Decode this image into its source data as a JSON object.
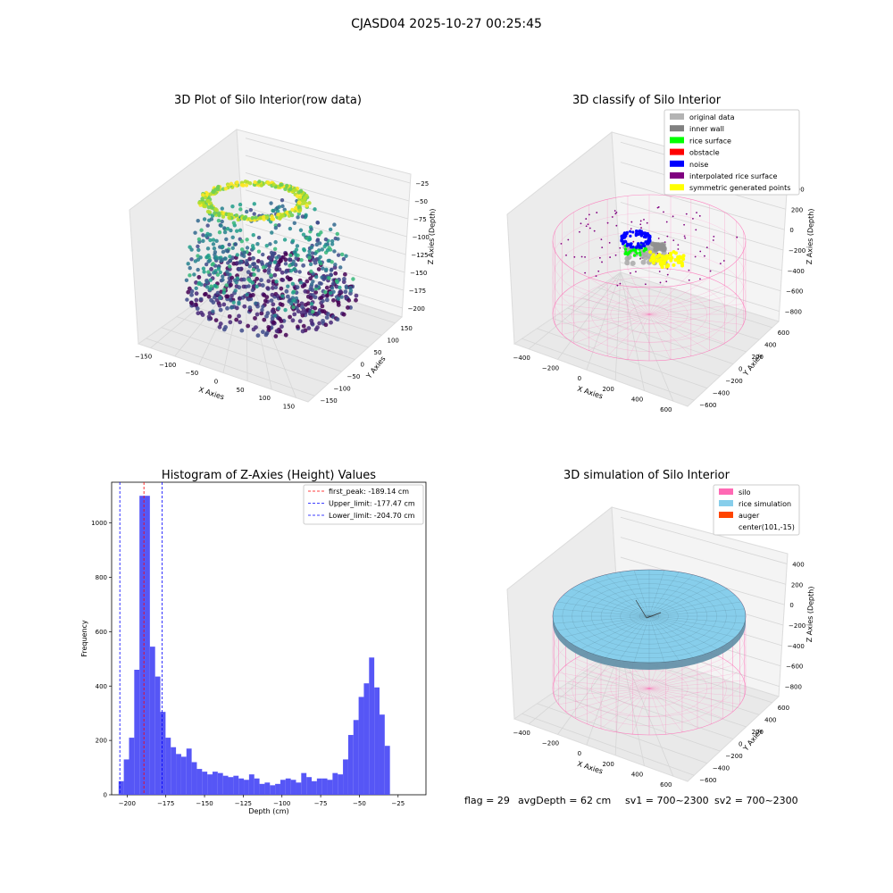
{
  "suptitle": "CJASD04 2025-10-27 00:25:45",
  "chart_data": [
    {
      "type": "scatter",
      "projection": "3d",
      "title": "3D Plot of Silo Interior(row data)",
      "xlabel": "X Axies",
      "ylabel": "Y Axies",
      "zlabel": "Z Axies (Depth)",
      "xticks": [
        "−150",
        "−100",
        "−50",
        "0",
        "50",
        "100",
        "150"
      ],
      "yticks": [
        "150",
        "100",
        "50",
        "0",
        "−50",
        "−100",
        "−150"
      ],
      "zticks": [
        "−25",
        "−50",
        "−75",
        "−100",
        "−125",
        "−150",
        "−175",
        "−200"
      ],
      "xlim": [
        -170,
        170
      ],
      "ylim": [
        -170,
        170
      ],
      "zlim": [
        -215,
        -10
      ],
      "colormap": "viridis",
      "structures": [
        "top ring near z −25 (yellow)",
        "mid-band points (green)",
        "bottom floor near z −200 (dark purple)"
      ]
    },
    {
      "type": "scatter",
      "projection": "3d",
      "title": "3D classify of Silo Interior",
      "xlabel": "X Axies",
      "ylabel": "Y Axies",
      "zlabel": "Z Axies (Depth)",
      "xticks": [
        "−400",
        "−200",
        "0",
        "200",
        "400",
        "600"
      ],
      "yticks": [
        "600",
        "400",
        "200",
        "0",
        "−200",
        "−400",
        "−600"
      ],
      "zticks": [
        "400",
        "200",
        "0",
        "−200",
        "−400",
        "−600",
        "−800"
      ],
      "legend_position": "top-right",
      "legend": [
        {
          "label": "original data",
          "color": "#b3b3b3"
        },
        {
          "label": "inner wall",
          "color": "#808080"
        },
        {
          "label": "rice surface",
          "color": "#00ff00"
        },
        {
          "label": "obstacle",
          "color": "#ff0000"
        },
        {
          "label": "noise",
          "color": "#0000ff"
        },
        {
          "label": "interpolated rice surface",
          "color": "#800080"
        },
        {
          "label": "symmetric generated points",
          "color": "#ffff00"
        }
      ]
    },
    {
      "type": "bar",
      "title": "Histogram of Z-Axies (Height) Values",
      "xlabel": "Depth (cm)",
      "ylabel": "Frequency",
      "xlim": [
        -210,
        -7
      ],
      "ylim": [
        0,
        1150
      ],
      "xticks": [
        -200,
        -175,
        -150,
        -125,
        -100,
        -75,
        -50,
        -25
      ],
      "yticks": [
        0,
        200,
        400,
        600,
        800,
        1000
      ],
      "bar_color": "#4d4df5",
      "bin_width": 3.37,
      "bin_start": -205.5,
      "values": [
        50,
        130,
        210,
        460,
        1100,
        1100,
        545,
        435,
        305,
        210,
        175,
        150,
        140,
        170,
        120,
        95,
        85,
        75,
        85,
        80,
        70,
        65,
        70,
        60,
        55,
        75,
        60,
        40,
        45,
        35,
        40,
        55,
        60,
        55,
        45,
        80,
        65,
        50,
        60,
        60,
        55,
        80,
        75,
        130,
        220,
        275,
        360,
        410,
        505,
        395,
        295,
        180
      ],
      "lines": [
        {
          "label": "first_peak: -189.14 cm",
          "x": -189.14,
          "color": "#ff0000"
        },
        {
          "label": "Upper_limit: -177.47 cm",
          "x": -177.47,
          "color": "#0000ff"
        },
        {
          "label": "Lower_limit: -204.70 cm",
          "x": -204.7,
          "color": "#0000ff"
        }
      ],
      "legend_position": "top-right"
    },
    {
      "type": "surface",
      "projection": "3d",
      "title": "3D simulation of Silo Interior",
      "xlabel": "X Axies",
      "ylabel": "Y Axies",
      "zlabel": "Z Axies (Depth)",
      "xticks": [
        "−400",
        "−200",
        "0",
        "200",
        "400",
        "600"
      ],
      "yticks": [
        "600",
        "400",
        "200",
        "0",
        "−200",
        "−400",
        "−600"
      ],
      "zticks": [
        "400",
        "200",
        "0",
        "−200",
        "−400",
        "−600",
        "−800"
      ],
      "legend_position": "top-right",
      "legend": [
        {
          "label": "silo",
          "color": "#ff69b4"
        },
        {
          "label": "rice simulation",
          "color": "#87ceeb"
        },
        {
          "label": "auger",
          "color": "#ff4500"
        },
        {
          "label": "center(101,-15)",
          "color": ""
        }
      ]
    }
  ],
  "footer": {
    "flag": "flag = 29",
    "avg_depth": "avgDepth = 62 cm",
    "sv1": "sv1 = 700~2300",
    "sv2": "sv2 = 700~2300"
  },
  "colors": {
    "pane": "#f2f2f2",
    "grid": "#d9d9d9",
    "silo": "#ff69b4",
    "rice": "#87ceeb",
    "noise": "#0000ff",
    "yellow": "#ffff00"
  }
}
